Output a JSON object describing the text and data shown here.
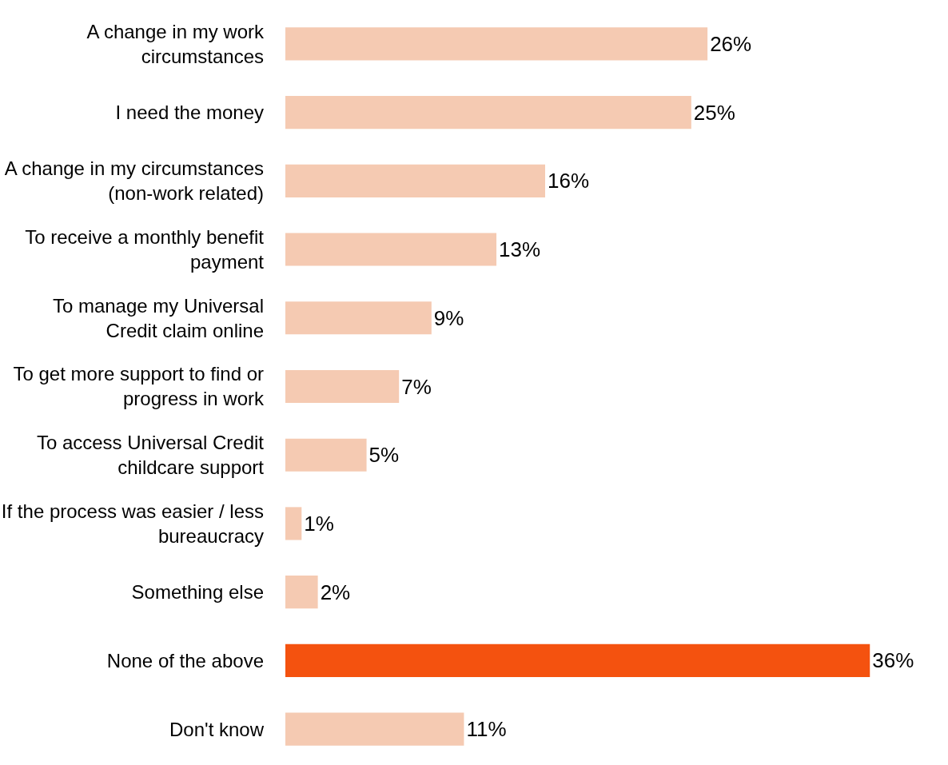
{
  "chart_data": {
    "type": "bar",
    "orientation": "horizontal",
    "categories": [
      "A change in my work\ncircumstances",
      "I need the money",
      "A change in my circumstances\n(non-work related)",
      "To receive a monthly benefit\npayment",
      "To manage my Universal\nCredit claim online",
      "To get more support to find or\nprogress in work",
      "To access Universal Credit\nchildcare support",
      "If the process was easier / less\nbureaucracy",
      "Something else",
      "None of the above",
      "Don't know"
    ],
    "values": [
      26,
      25,
      16,
      13,
      9,
      7,
      5,
      1,
      2,
      36,
      11
    ],
    "value_labels": [
      "26%",
      "25%",
      "16%",
      "13%",
      "9%",
      "7%",
      "5%",
      "1%",
      "2%",
      "36%",
      "11%"
    ],
    "colors": [
      "#f5cab2",
      "#f5cab2",
      "#f5cab2",
      "#f5cab2",
      "#f5cab2",
      "#f5cab2",
      "#f5cab2",
      "#f5cab2",
      "#f5cab2",
      "#f4520f",
      "#f5cab2"
    ],
    "legend": false
  }
}
